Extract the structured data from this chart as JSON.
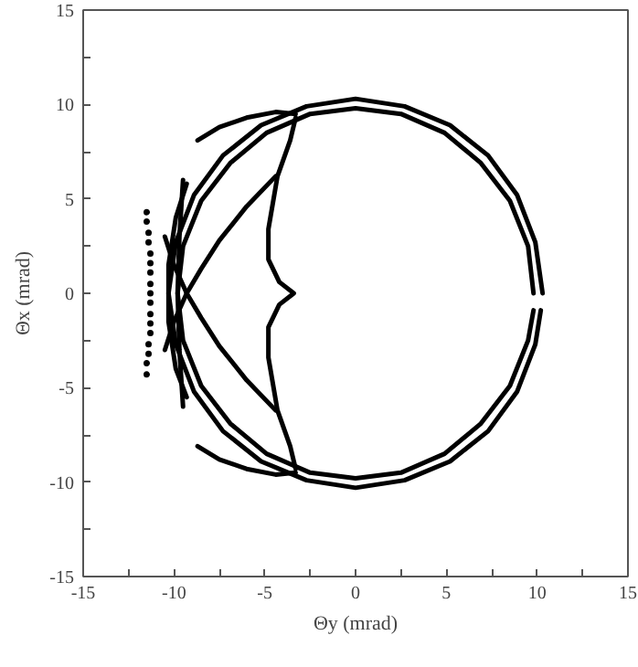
{
  "chart_data": {
    "type": "line",
    "xlabel": "Θy (mrad)",
    "ylabel": "Θx (mrad)",
    "xlim": [
      -15,
      15
    ],
    "ylim": [
      -15,
      15
    ],
    "xticks": [
      -15,
      {
        "value": -12.5,
        "label": null
      },
      -10,
      {
        "value": -7.5,
        "label": null
      },
      -5,
      {
        "value": -2.5,
        "label": null
      },
      0,
      {
        "value": 2.5,
        "label": null
      },
      5,
      {
        "value": 7.5,
        "label": null
      },
      10,
      {
        "value": 12.5,
        "label": null
      },
      15
    ],
    "yticks": [
      -15,
      {
        "value": -12.5,
        "label": null
      },
      -10,
      {
        "value": -7.5,
        "label": null
      },
      -5,
      {
        "value": -2.5,
        "label": null
      },
      0,
      {
        "value": 2.5,
        "label": null
      },
      5,
      {
        "value": 7.5,
        "label": null
      },
      10,
      {
        "value": 12.5,
        "label": null
      },
      15
    ],
    "line_style": "solid",
    "series": [
      {
        "color": "#000000",
        "x": [
          10.3,
          9.9,
          8.9,
          7.3,
          5.2,
          2.7,
          0,
          -2.7,
          -5.2,
          -7.3,
          -8.9,
          -9.9,
          -10.3,
          -9.9,
          -8.9,
          -7.3,
          -5.2,
          -2.7,
          0,
          2.7,
          5.2,
          7.3,
          8.9,
          9.9,
          10.2
        ],
        "values": [
          0,
          2.7,
          5.2,
          7.3,
          8.9,
          9.9,
          10.3,
          9.9,
          8.9,
          7.3,
          5.2,
          2.7,
          0,
          -2.7,
          -5.2,
          -7.3,
          -8.9,
          -9.9,
          -10.3,
          -9.9,
          -8.9,
          -7.3,
          -5.2,
          -2.7,
          -0.9
        ]
      },
      {
        "color": "#000000",
        "x": [
          9.8,
          9.5,
          8.5,
          6.9,
          4.9,
          2.5,
          0,
          -2.5,
          -4.9,
          -6.9,
          -8.5,
          -9.5,
          -9.8,
          -9.5,
          -8.5,
          -6.9,
          -4.9,
          -2.5,
          0,
          2.5,
          4.9,
          6.9,
          8.5,
          9.5,
          9.8
        ],
        "values": [
          0,
          2.5,
          4.9,
          6.9,
          8.5,
          9.5,
          9.8,
          9.5,
          8.5,
          6.9,
          4.9,
          2.5,
          0,
          -2.5,
          -4.9,
          -6.9,
          -8.5,
          -9.5,
          -9.8,
          -9.5,
          -8.5,
          -6.9,
          -4.9,
          -2.5,
          -0.9
        ]
      },
      {
        "color": "#000000",
        "x": [
          -3.3,
          -3.6,
          -4.3,
          -4.8,
          -4.8,
          -4.2,
          -3.4,
          -4.2,
          -4.8,
          -4.8,
          -4.3,
          -3.6,
          -3.3
        ],
        "values": [
          9.3,
          8.1,
          6.2,
          3.4,
          1.8,
          0.6,
          0,
          -0.6,
          -1.8,
          -3.4,
          -6.2,
          -8.1,
          -9.3
        ]
      },
      {
        "color": "#000000",
        "x": [
          -8.7,
          -7.5,
          -6,
          -4.4,
          -3.3
        ],
        "values": [
          8.1,
          8.8,
          9.3,
          9.6,
          9.5
        ]
      },
      {
        "color": "#000000",
        "x": [
          -8.7,
          -7.5,
          -6,
          -4.4,
          -3.3
        ],
        "values": [
          -8.1,
          -8.8,
          -9.3,
          -9.6,
          -9.5
        ]
      },
      {
        "color": "#000000",
        "x": [
          -4.4,
          -6,
          -7.5,
          -8.5,
          -9.3,
          -10,
          -10.5
        ],
        "values": [
          6.2,
          4.6,
          2.8,
          1.3,
          0,
          -1.5,
          -3
        ]
      },
      {
        "color": "#000000",
        "x": [
          -4.4,
          -6,
          -7.5,
          -8.5,
          -9.3,
          -10,
          -10.5
        ],
        "values": [
          -6.2,
          -4.6,
          -2.8,
          -1.3,
          0,
          1.5,
          3
        ]
      },
      {
        "color": "#000000",
        "x": [
          -9.3,
          -9.9,
          -10.3,
          -10.3,
          -9.9,
          -9.3
        ],
        "values": [
          5.8,
          4,
          1.5,
          -1.5,
          -4,
          -5.5
        ]
      },
      {
        "color": "#000000",
        "x": [
          -9.5,
          -9.7,
          -9.8,
          -9.7,
          -9.5
        ],
        "values": [
          6,
          3,
          0,
          -3,
          -6
        ]
      },
      {
        "type": "scatter",
        "color": "#000000",
        "marker": "circle",
        "x": [
          -11.5,
          -11.5,
          -11.4,
          -11.4,
          -11.3,
          -11.3,
          -11.3,
          -11.3,
          -11.3,
          -11.3,
          -11.3,
          -11.3,
          -11.3,
          -11.4,
          -11.4,
          -11.5,
          -11.5
        ],
        "values": [
          4.3,
          3.8,
          3.2,
          2.7,
          2.1,
          1.6,
          1.1,
          0.5,
          0,
          -0.5,
          -1.1,
          -1.6,
          -2.1,
          -2.7,
          -3.2,
          -3.7,
          -4.3
        ]
      }
    ]
  }
}
